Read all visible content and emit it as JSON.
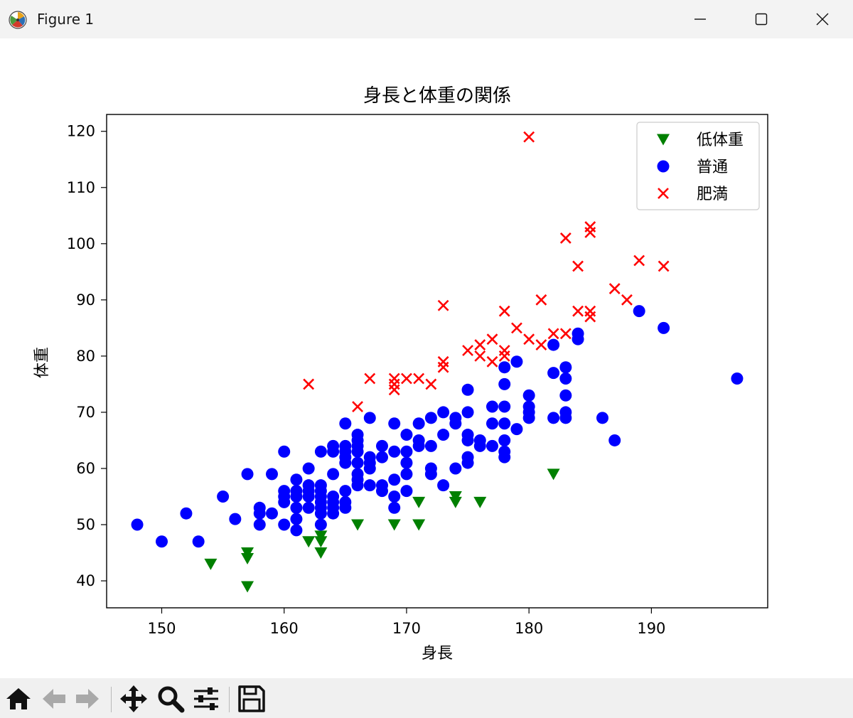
{
  "window": {
    "title": "Figure 1",
    "icons": {
      "app": "matplotlib-icon",
      "minimize": "minimize-icon",
      "maximize": "maximize-icon",
      "close": "close-icon"
    }
  },
  "toolbar": {
    "buttons": [
      "home-icon",
      "back-arrow-icon",
      "forward-arrow-icon",
      "pan-icon",
      "zoom-icon",
      "configure-subplots-icon",
      "save-icon"
    ]
  },
  "chart_data": {
    "type": "scatter",
    "title": "身長と体重の関係",
    "xlabel": "身長",
    "ylabel": "体重",
    "xlim": [
      145.5,
      199.5
    ],
    "ylim": [
      35.2,
      123.0
    ],
    "xticks": [
      150,
      160,
      170,
      180,
      190
    ],
    "yticks": [
      40,
      50,
      60,
      70,
      80,
      90,
      100,
      110,
      120
    ],
    "grid": false,
    "legend_position": "top-right",
    "series": [
      {
        "name": "低体重",
        "marker": "triangle-down",
        "color": "#008000",
        "points": [
          [
            154,
            43
          ],
          [
            157,
            45
          ],
          [
            157,
            44
          ],
          [
            157,
            39
          ],
          [
            162,
            47
          ],
          [
            163,
            48
          ],
          [
            163,
            47
          ],
          [
            163,
            45
          ],
          [
            166,
            50
          ],
          [
            169,
            50
          ],
          [
            171,
            54
          ],
          [
            171,
            50
          ],
          [
            174,
            55
          ],
          [
            174,
            54
          ],
          [
            176,
            54
          ],
          [
            182,
            59
          ]
        ]
      },
      {
        "name": "普通",
        "marker": "circle",
        "color": "#0000ff",
        "points": [
          [
            148,
            50
          ],
          [
            150,
            47
          ],
          [
            152,
            52
          ],
          [
            153,
            47
          ],
          [
            155,
            55
          ],
          [
            156,
            51
          ],
          [
            157,
            59
          ],
          [
            158,
            53
          ],
          [
            158,
            52
          ],
          [
            158,
            50
          ],
          [
            159,
            59
          ],
          [
            159,
            52
          ],
          [
            160,
            63
          ],
          [
            160,
            56
          ],
          [
            160,
            55
          ],
          [
            160,
            54
          ],
          [
            160,
            50
          ],
          [
            161,
            58
          ],
          [
            161,
            56
          ],
          [
            161,
            55
          ],
          [
            161,
            53
          ],
          [
            161,
            51
          ],
          [
            161,
            49
          ],
          [
            162,
            60
          ],
          [
            162,
            57
          ],
          [
            162,
            56
          ],
          [
            162,
            55
          ],
          [
            162,
            53
          ],
          [
            163,
            63
          ],
          [
            163,
            57
          ],
          [
            163,
            56
          ],
          [
            163,
            55
          ],
          [
            163,
            54
          ],
          [
            163,
            53
          ],
          [
            163,
            52
          ],
          [
            163,
            50
          ],
          [
            164,
            64
          ],
          [
            164,
            63
          ],
          [
            164,
            59
          ],
          [
            164,
            55
          ],
          [
            164,
            54
          ],
          [
            164,
            53
          ],
          [
            164,
            52
          ],
          [
            165,
            68
          ],
          [
            165,
            64
          ],
          [
            165,
            63
          ],
          [
            165,
            62
          ],
          [
            165,
            61
          ],
          [
            165,
            56
          ],
          [
            165,
            54
          ],
          [
            165,
            53
          ],
          [
            166,
            66
          ],
          [
            166,
            65
          ],
          [
            166,
            64
          ],
          [
            166,
            63
          ],
          [
            166,
            61
          ],
          [
            166,
            59
          ],
          [
            166,
            58
          ],
          [
            166,
            57
          ],
          [
            167,
            69
          ],
          [
            167,
            62
          ],
          [
            167,
            61
          ],
          [
            167,
            60
          ],
          [
            167,
            57
          ],
          [
            168,
            64
          ],
          [
            168,
            62
          ],
          [
            168,
            57
          ],
          [
            168,
            56
          ],
          [
            169,
            68
          ],
          [
            169,
            63
          ],
          [
            169,
            58
          ],
          [
            169,
            55
          ],
          [
            169,
            53
          ],
          [
            170,
            66
          ],
          [
            170,
            63
          ],
          [
            170,
            61
          ],
          [
            170,
            59
          ],
          [
            170,
            56
          ],
          [
            171,
            68
          ],
          [
            171,
            65
          ],
          [
            171,
            64
          ],
          [
            172,
            69
          ],
          [
            172,
            64
          ],
          [
            172,
            60
          ],
          [
            172,
            59
          ],
          [
            173,
            70
          ],
          [
            173,
            66
          ],
          [
            173,
            57
          ],
          [
            174,
            69
          ],
          [
            174,
            68
          ],
          [
            174,
            60
          ],
          [
            175,
            74
          ],
          [
            175,
            70
          ],
          [
            175,
            66
          ],
          [
            175,
            65
          ],
          [
            175,
            62
          ],
          [
            175,
            61
          ],
          [
            176,
            65
          ],
          [
            176,
            64
          ],
          [
            177,
            71
          ],
          [
            177,
            68
          ],
          [
            177,
            64
          ],
          [
            178,
            78
          ],
          [
            178,
            75
          ],
          [
            178,
            71
          ],
          [
            178,
            68
          ],
          [
            178,
            65
          ],
          [
            178,
            63
          ],
          [
            178,
            62
          ],
          [
            179,
            79
          ],
          [
            179,
            67
          ],
          [
            180,
            73
          ],
          [
            180,
            71
          ],
          [
            180,
            70
          ],
          [
            180,
            69
          ],
          [
            182,
            82
          ],
          [
            182,
            77
          ],
          [
            182,
            69
          ],
          [
            183,
            78
          ],
          [
            183,
            76
          ],
          [
            183,
            73
          ],
          [
            183,
            70
          ],
          [
            183,
            69
          ],
          [
            184,
            84
          ],
          [
            184,
            83
          ],
          [
            186,
            69
          ],
          [
            187,
            65
          ],
          [
            189,
            88
          ],
          [
            191,
            85
          ],
          [
            197,
            76
          ]
        ]
      },
      {
        "name": "肥満",
        "marker": "x",
        "color": "#ff0000",
        "points": [
          [
            162,
            75
          ],
          [
            166,
            71
          ],
          [
            167,
            76
          ],
          [
            169,
            76
          ],
          [
            169,
            75
          ],
          [
            169,
            74
          ],
          [
            170,
            76
          ],
          [
            171,
            76
          ],
          [
            172,
            75
          ],
          [
            173,
            89
          ],
          [
            173,
            79
          ],
          [
            173,
            78
          ],
          [
            175,
            81
          ],
          [
            176,
            82
          ],
          [
            176,
            80
          ],
          [
            177,
            83
          ],
          [
            177,
            79
          ],
          [
            178,
            88
          ],
          [
            178,
            81
          ],
          [
            178,
            80
          ],
          [
            179,
            85
          ],
          [
            180,
            119
          ],
          [
            180,
            83
          ],
          [
            181,
            90
          ],
          [
            181,
            82
          ],
          [
            182,
            84
          ],
          [
            183,
            101
          ],
          [
            183,
            84
          ],
          [
            184,
            96
          ],
          [
            184,
            88
          ],
          [
            185,
            103
          ],
          [
            185,
            102
          ],
          [
            185,
            88
          ],
          [
            185,
            87
          ],
          [
            187,
            92
          ],
          [
            188,
            90
          ],
          [
            189,
            97
          ],
          [
            191,
            96
          ]
        ]
      }
    ]
  }
}
